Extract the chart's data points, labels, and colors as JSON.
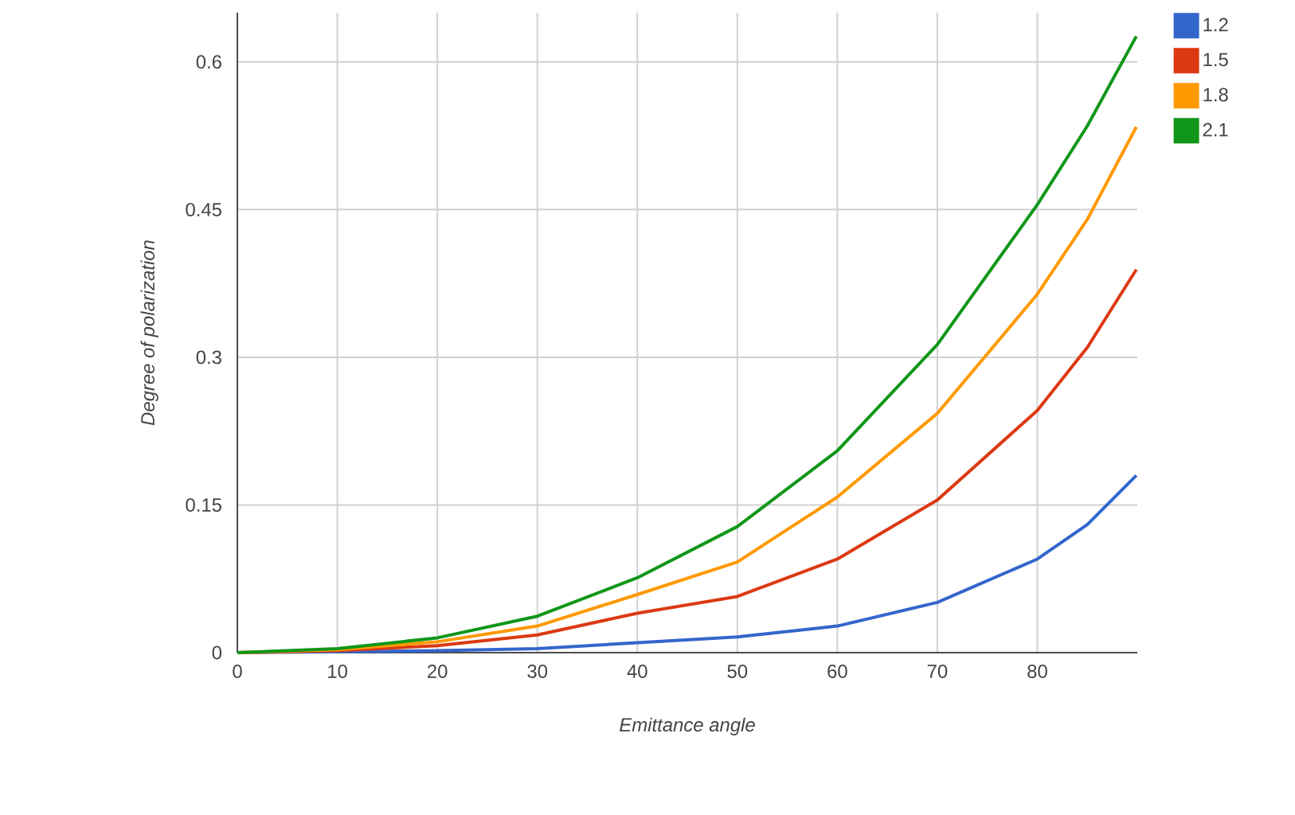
{
  "chart_data": {
    "type": "line",
    "xlabel": "Emittance angle",
    "ylabel": "Degree of polarization",
    "x": [
      0,
      10,
      20,
      30,
      40,
      50,
      60,
      70,
      80,
      85,
      89.9
    ],
    "series": [
      {
        "name": "1.2",
        "color": "#3366cc",
        "values": [
          0,
          0.001,
          0.002,
          0.004,
          0.01,
          0.016,
          0.027,
          0.051,
          0.095,
          0.13,
          0.18
        ]
      },
      {
        "name": "1.5",
        "color": "#dc3912",
        "values": [
          0,
          0.002,
          0.007,
          0.018,
          0.04,
          0.057,
          0.095,
          0.155,
          0.246,
          0.31,
          0.389
        ]
      },
      {
        "name": "1.8",
        "color": "#ff9900",
        "values": [
          0,
          0.003,
          0.011,
          0.027,
          0.059,
          0.092,
          0.158,
          0.243,
          0.364,
          0.44,
          0.534
        ]
      },
      {
        "name": "2.1",
        "color": "#109618",
        "values": [
          0,
          0.004,
          0.015,
          0.037,
          0.076,
          0.128,
          0.205,
          0.313,
          0.455,
          0.535,
          0.626
        ]
      }
    ],
    "xlim": [
      0,
      90
    ],
    "ylim": [
      0,
      0.65
    ],
    "xticks": [
      0,
      10,
      20,
      30,
      40,
      50,
      60,
      70,
      80
    ],
    "yticks": [
      0,
      0.15,
      0.3,
      0.45,
      0.6
    ],
    "grid": true,
    "legend": "top right",
    "marker": "none",
    "line_style": "solid"
  }
}
